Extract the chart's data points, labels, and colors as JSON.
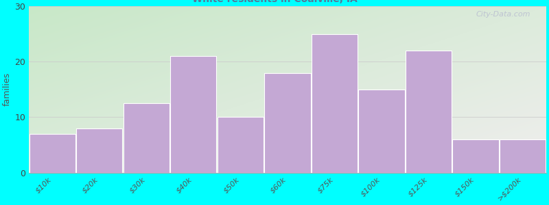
{
  "ylabel": "families",
  "categories": [
    "$10k",
    "$20k",
    "$30k",
    "$40k",
    "$50k",
    "$60k",
    "$75k",
    "$100k",
    "$125k",
    "$150k",
    ">$200k"
  ],
  "values": [
    7,
    8,
    12.5,
    21,
    10,
    18,
    25,
    15,
    22,
    6,
    6
  ],
  "bar_color": "#C4A8D4",
  "bar_edge_color": "#ffffff",
  "background_color": "#00FFFF",
  "plot_bg_topleft": "#c8e8c8",
  "plot_bg_right": "#f0eeee",
  "ylim": [
    0,
    30
  ],
  "yticks": [
    0,
    10,
    20,
    30
  ],
  "title_fontsize": 15,
  "subtitle_fontsize": 10,
  "ylabel_fontsize": 9,
  "tick_fontsize": 8,
  "watermark": "City-Data.com"
}
